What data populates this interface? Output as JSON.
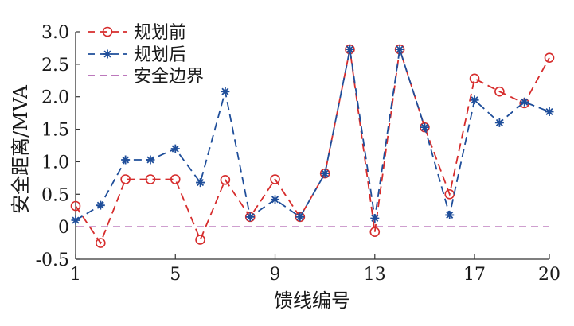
{
  "chart_data": {
    "type": "line",
    "xlabel": "馈线编号",
    "ylabel": "安全距离/MVA",
    "xlim": [
      1,
      20
    ],
    "ylim": [
      -0.5,
      3.0
    ],
    "xticks": [
      "1",
      "5",
      "9",
      "13",
      "17",
      "20"
    ],
    "xtick_values": [
      1,
      5,
      9,
      13,
      17,
      20
    ],
    "yticks": [
      "-0.5",
      "0",
      "0.5",
      "1.0",
      "1.5",
      "2.0",
      "2.5",
      "3.0"
    ],
    "ytick_values": [
      -0.5,
      0,
      0.5,
      1.0,
      1.5,
      2.0,
      2.5,
      3.0
    ],
    "grid": false,
    "legend_position": "top-left",
    "x": [
      1,
      2,
      3,
      4,
      5,
      6,
      7,
      8,
      9,
      10,
      11,
      12,
      13,
      14,
      15,
      16,
      17,
      18,
      19,
      20
    ],
    "series": [
      {
        "name": "规划前",
        "color": "#d62c2c",
        "marker": "circle",
        "style": "dashed",
        "values": [
          0.32,
          -0.25,
          0.73,
          0.73,
          0.73,
          -0.2,
          0.72,
          0.15,
          0.73,
          0.15,
          0.82,
          2.73,
          -0.08,
          2.73,
          1.53,
          0.5,
          2.28,
          2.08,
          1.9,
          2.6
        ]
      },
      {
        "name": "规划后",
        "color": "#1f4e9a",
        "marker": "star",
        "style": "dashed",
        "values": [
          0.1,
          0.33,
          1.03,
          1.03,
          1.2,
          0.68,
          2.08,
          0.15,
          0.42,
          0.15,
          0.82,
          2.73,
          0.13,
          2.73,
          1.53,
          0.18,
          1.95,
          1.6,
          1.92,
          1.77
        ]
      },
      {
        "name": "安全边界",
        "color": "#b266b2",
        "marker": "none",
        "style": "dashed",
        "values": [
          0,
          0,
          0,
          0,
          0,
          0,
          0,
          0,
          0,
          0,
          0,
          0,
          0,
          0,
          0,
          0,
          0,
          0,
          0,
          0
        ]
      }
    ]
  }
}
